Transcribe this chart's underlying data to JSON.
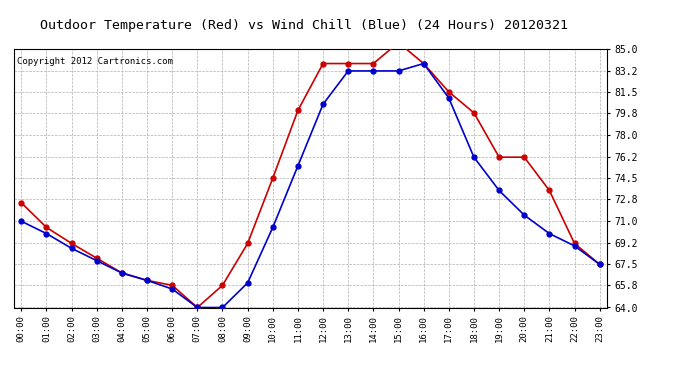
{
  "title": "Outdoor Temperature (Red) vs Wind Chill (Blue) (24 Hours) 20120321",
  "copyright": "Copyright 2012 Cartronics.com",
  "x_labels": [
    "00:00",
    "01:00",
    "02:00",
    "03:00",
    "04:00",
    "05:00",
    "06:00",
    "07:00",
    "08:00",
    "09:00",
    "10:00",
    "11:00",
    "12:00",
    "13:00",
    "14:00",
    "15:00",
    "16:00",
    "17:00",
    "18:00",
    "19:00",
    "20:00",
    "21:00",
    "22:00",
    "23:00"
  ],
  "red_temp": [
    72.5,
    70.5,
    69.2,
    68.0,
    66.8,
    66.2,
    65.8,
    64.0,
    65.8,
    69.2,
    74.5,
    80.0,
    83.8,
    83.8,
    83.8,
    85.5,
    83.8,
    81.5,
    79.8,
    76.2,
    76.2,
    73.5,
    69.2,
    67.5
  ],
  "blue_temp": [
    71.0,
    70.0,
    68.8,
    67.8,
    66.8,
    66.2,
    65.5,
    64.0,
    64.0,
    66.0,
    70.5,
    75.5,
    80.5,
    83.2,
    83.2,
    83.2,
    83.8,
    81.0,
    76.2,
    73.5,
    71.5,
    70.0,
    69.0,
    67.5
  ],
  "ylim": [
    64.0,
    85.0
  ],
  "yticks": [
    64.0,
    65.8,
    67.5,
    69.2,
    71.0,
    72.8,
    74.5,
    76.2,
    78.0,
    79.8,
    81.5,
    83.2,
    85.0
  ],
  "red_color": "#cc0000",
  "blue_color": "#0000cc",
  "bg_color": "#ffffff",
  "grid_color": "#b0b0b0",
  "title_fontsize": 9.5,
  "copyright_fontsize": 6.5,
  "marker_size": 3.5,
  "linewidth": 1.2
}
